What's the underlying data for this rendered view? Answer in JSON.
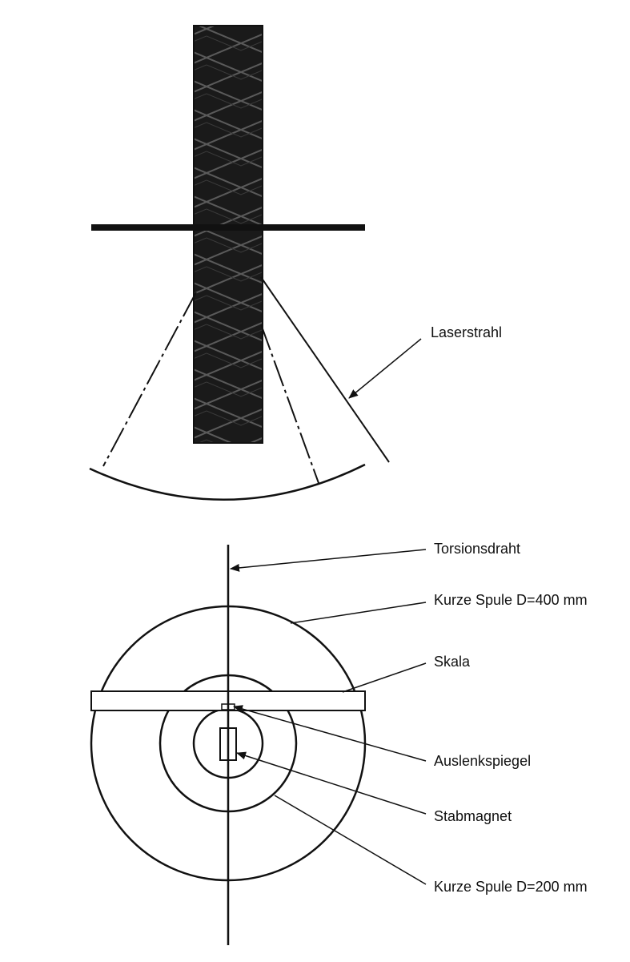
{
  "labels": {
    "laser_beam": "Laserstrahl",
    "torsion_wire": "Torsionsdraht",
    "coil_large": "Kurze Spule D=400 mm",
    "scale": "Skala",
    "mirror": "Auslenkspiegel",
    "bar_magnet": "Stabmagnet",
    "coil_small": "Kurze Spule D=200 mm"
  },
  "colors": {
    "line": "#111111",
    "background": "#ffffff"
  }
}
